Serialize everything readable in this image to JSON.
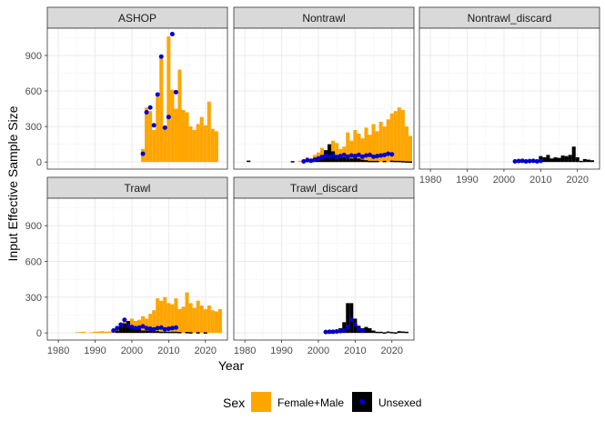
{
  "chart_data": {
    "type": "bar",
    "xlabel": "Year",
    "ylabel": "Input Effective Sample Size",
    "xlim": [
      1977,
      2026
    ],
    "ylim": [
      -60,
      1130
    ],
    "x_ticks": [
      1980,
      1990,
      2000,
      2010,
      2020
    ],
    "y_ticks": [
      0,
      300,
      600,
      900
    ],
    "legend": {
      "title": "Sex",
      "position": "bottom",
      "entries": [
        {
          "name": "Female+Male",
          "color": "#FFA500"
        },
        {
          "name": "Unsexed",
          "color": "#000000",
          "point_color": "#0000CD"
        }
      ]
    },
    "panels": [
      {
        "name": "ASHOP",
        "bars_fm": [
          [
            2003,
            110
          ],
          [
            2004,
            460
          ],
          [
            2005,
            430
          ],
          [
            2006,
            270
          ],
          [
            2007,
            550
          ],
          [
            2008,
            890
          ],
          [
            2009,
            300
          ],
          [
            2010,
            1060
          ],
          [
            2011,
            610
          ],
          [
            2012,
            450
          ],
          [
            2013,
            780
          ],
          [
            2014,
            440
          ],
          [
            2015,
            420
          ],
          [
            2016,
            300
          ],
          [
            2017,
            270
          ],
          [
            2018,
            320
          ],
          [
            2019,
            380
          ],
          [
            2020,
            310
          ],
          [
            2021,
            510
          ],
          [
            2022,
            280
          ],
          [
            2023,
            260
          ]
        ],
        "bars_u": [],
        "points": [
          [
            2003,
            70
          ],
          [
            2004,
            420
          ],
          [
            2005,
            460
          ],
          [
            2006,
            310
          ],
          [
            2007,
            570
          ],
          [
            2008,
            890
          ],
          [
            2009,
            290
          ],
          [
            2010,
            380
          ],
          [
            2011,
            1080
          ],
          [
            2012,
            590
          ]
        ]
      },
      {
        "name": "Nontrawl",
        "bars_fm": [
          [
            1995,
            10
          ],
          [
            1996,
            20
          ],
          [
            1997,
            40
          ],
          [
            1998,
            30
          ],
          [
            1999,
            60
          ],
          [
            2000,
            80
          ],
          [
            2001,
            120
          ],
          [
            2002,
            90
          ],
          [
            2003,
            150
          ],
          [
            2004,
            180
          ],
          [
            2005,
            160
          ],
          [
            2006,
            110
          ],
          [
            2007,
            130
          ],
          [
            2008,
            250
          ],
          [
            2009,
            180
          ],
          [
            2010,
            270
          ],
          [
            2011,
            240
          ],
          [
            2012,
            200
          ],
          [
            2013,
            290
          ],
          [
            2014,
            230
          ],
          [
            2015,
            320
          ],
          [
            2016,
            260
          ],
          [
            2017,
            340
          ],
          [
            2018,
            300
          ],
          [
            2019,
            360
          ],
          [
            2020,
            410
          ],
          [
            2021,
            430
          ],
          [
            2022,
            460
          ],
          [
            2023,
            440
          ],
          [
            2024,
            300
          ],
          [
            2025,
            220
          ]
        ],
        "bars_u": [
          [
            1981,
            12
          ],
          [
            1993,
            8
          ],
          [
            1999,
            30
          ],
          [
            2000,
            40
          ],
          [
            2001,
            60
          ],
          [
            2002,
            100
          ],
          [
            2003,
            150
          ],
          [
            2004,
            90
          ],
          [
            2005,
            60
          ],
          [
            2006,
            50
          ],
          [
            2007,
            40
          ],
          [
            2008,
            30
          ],
          [
            2009,
            30
          ],
          [
            2010,
            50
          ],
          [
            2011,
            30
          ],
          [
            2012,
            20
          ],
          [
            2013,
            15
          ],
          [
            2014,
            10
          ],
          [
            2015,
            10
          ],
          [
            2016,
            10
          ],
          [
            2018,
            10
          ],
          [
            2020,
            12
          ],
          [
            2021,
            10
          ],
          [
            2022,
            10
          ],
          [
            2023,
            8
          ],
          [
            2024,
            6
          ],
          [
            2025,
            5
          ]
        ],
        "points": [
          [
            1996,
            5
          ],
          [
            1997,
            15
          ],
          [
            1998,
            10
          ],
          [
            1999,
            20
          ],
          [
            2000,
            30
          ],
          [
            2001,
            40
          ],
          [
            2002,
            50
          ],
          [
            2003,
            45
          ],
          [
            2004,
            55
          ],
          [
            2005,
            40
          ],
          [
            2006,
            50
          ],
          [
            2007,
            60
          ],
          [
            2008,
            45
          ],
          [
            2009,
            55
          ],
          [
            2010,
            50
          ],
          [
            2011,
            60
          ],
          [
            2012,
            45
          ],
          [
            2013,
            55
          ],
          [
            2014,
            60
          ],
          [
            2015,
            45
          ],
          [
            2016,
            50
          ],
          [
            2017,
            55
          ],
          [
            2018,
            60
          ],
          [
            2019,
            70
          ],
          [
            2020,
            65
          ]
        ]
      },
      {
        "name": "Nontrawl_discard",
        "bars_fm": [],
        "bars_u": [
          [
            2004,
            10
          ],
          [
            2005,
            8
          ],
          [
            2006,
            12
          ],
          [
            2007,
            15
          ],
          [
            2008,
            10
          ],
          [
            2009,
            20
          ],
          [
            2010,
            50
          ],
          [
            2011,
            40
          ],
          [
            2012,
            60
          ],
          [
            2013,
            30
          ],
          [
            2014,
            40
          ],
          [
            2015,
            35
          ],
          [
            2016,
            55
          ],
          [
            2017,
            50
          ],
          [
            2018,
            60
          ],
          [
            2019,
            130
          ],
          [
            2020,
            40
          ],
          [
            2021,
            10
          ],
          [
            2022,
            25
          ],
          [
            2023,
            20
          ],
          [
            2024,
            15
          ]
        ],
        "points": [
          [
            2003,
            5
          ],
          [
            2004,
            8
          ],
          [
            2005,
            10
          ],
          [
            2006,
            5
          ],
          [
            2007,
            8
          ],
          [
            2008,
            10
          ],
          [
            2009,
            5
          ],
          [
            2010,
            10
          ]
        ]
      },
      {
        "name": "Trawl",
        "bars_fm": [
          [
            1985,
            5
          ],
          [
            1986,
            8
          ],
          [
            1987,
            10
          ],
          [
            1989,
            6
          ],
          [
            1990,
            10
          ],
          [
            1991,
            12
          ],
          [
            1992,
            15
          ],
          [
            1993,
            10
          ],
          [
            1994,
            12
          ],
          [
            1995,
            20
          ],
          [
            1996,
            40
          ],
          [
            1997,
            80
          ],
          [
            1998,
            110
          ],
          [
            1999,
            90
          ],
          [
            2000,
            120
          ],
          [
            2001,
            100
          ],
          [
            2002,
            110
          ],
          [
            2003,
            140
          ],
          [
            2004,
            120
          ],
          [
            2005,
            160
          ],
          [
            2006,
            190
          ],
          [
            2007,
            290
          ],
          [
            2008,
            270
          ],
          [
            2009,
            300
          ],
          [
            2010,
            250
          ],
          [
            2011,
            240
          ],
          [
            2012,
            290
          ],
          [
            2013,
            200
          ],
          [
            2014,
            220
          ],
          [
            2015,
            340
          ],
          [
            2016,
            250
          ],
          [
            2017,
            210
          ],
          [
            2018,
            270
          ],
          [
            2019,
            230
          ],
          [
            2020,
            200
          ],
          [
            2021,
            230
          ],
          [
            2022,
            190
          ],
          [
            2023,
            180
          ],
          [
            2024,
            200
          ]
        ],
        "bars_u": [
          [
            1996,
            20
          ],
          [
            1997,
            60
          ],
          [
            1998,
            80
          ],
          [
            1999,
            100
          ],
          [
            2000,
            50
          ],
          [
            2001,
            40
          ],
          [
            2002,
            30
          ],
          [
            2003,
            20
          ],
          [
            2004,
            20
          ],
          [
            2005,
            20
          ],
          [
            2006,
            15
          ],
          [
            2007,
            15
          ],
          [
            2008,
            10
          ],
          [
            2009,
            10
          ],
          [
            2010,
            10
          ],
          [
            2011,
            10
          ],
          [
            2012,
            10
          ],
          [
            2013,
            8
          ],
          [
            2015,
            8
          ],
          [
            2016,
            6
          ],
          [
            2018,
            6
          ],
          [
            2020,
            5
          ]
        ],
        "points": [
          [
            1995,
            20
          ],
          [
            1996,
            40
          ],
          [
            1997,
            70
          ],
          [
            1998,
            110
          ],
          [
            1999,
            60
          ],
          [
            2000,
            50
          ],
          [
            2001,
            40
          ],
          [
            2002,
            45
          ],
          [
            2003,
            55
          ],
          [
            2004,
            40
          ],
          [
            2005,
            35
          ],
          [
            2006,
            30
          ],
          [
            2007,
            40
          ],
          [
            2008,
            45
          ],
          [
            2009,
            30
          ],
          [
            2010,
            35
          ],
          [
            2011,
            40
          ],
          [
            2012,
            45
          ]
        ]
      },
      {
        "name": "Trawl_discard",
        "bars_fm": [],
        "bars_u": [
          [
            2002,
            5
          ],
          [
            2003,
            5
          ],
          [
            2004,
            10
          ],
          [
            2005,
            10
          ],
          [
            2006,
            40
          ],
          [
            2007,
            90
          ],
          [
            2008,
            250
          ],
          [
            2009,
            250
          ],
          [
            2010,
            120
          ],
          [
            2011,
            60
          ],
          [
            2012,
            40
          ],
          [
            2013,
            50
          ],
          [
            2014,
            40
          ],
          [
            2015,
            20
          ],
          [
            2016,
            10
          ],
          [
            2017,
            10
          ],
          [
            2018,
            5
          ],
          [
            2019,
            12
          ],
          [
            2020,
            8
          ],
          [
            2021,
            5
          ],
          [
            2022,
            15
          ],
          [
            2023,
            12
          ],
          [
            2024,
            10
          ]
        ],
        "points": [
          [
            2002,
            8
          ],
          [
            2003,
            10
          ],
          [
            2004,
            10
          ],
          [
            2005,
            12
          ],
          [
            2006,
            15
          ],
          [
            2007,
            20
          ],
          [
            2008,
            50
          ],
          [
            2009,
            110
          ],
          [
            2010,
            70
          ],
          [
            2011,
            30
          ],
          [
            2012,
            20
          ]
        ]
      }
    ]
  }
}
